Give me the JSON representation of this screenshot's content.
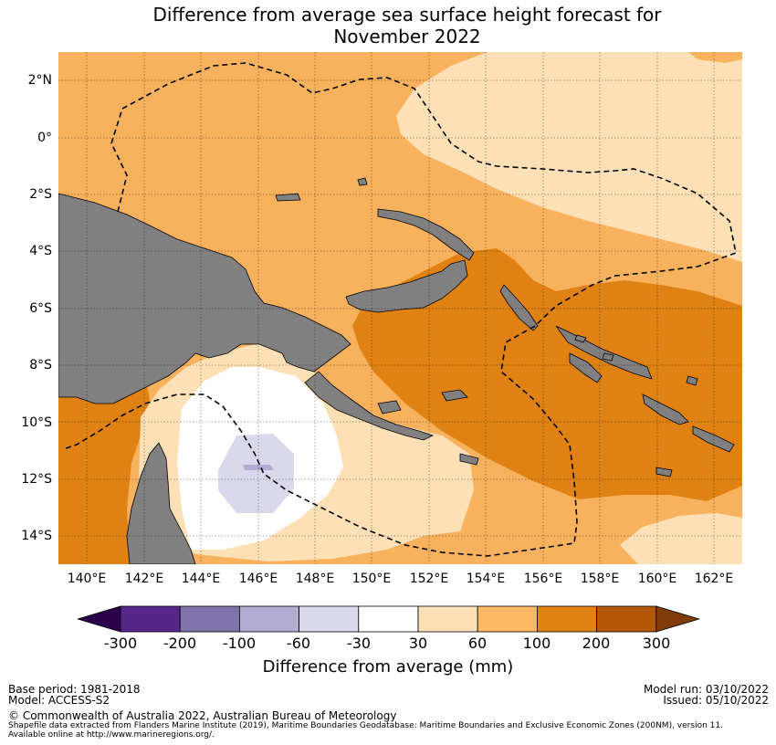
{
  "title": {
    "line1": "Difference from average sea surface height forecast for",
    "line2": "November 2022"
  },
  "map": {
    "lat_labels": [
      "2°N",
      "0°",
      "2°S",
      "4°S",
      "6°S",
      "8°S",
      "10°S",
      "12°S",
      "14°S"
    ],
    "lon_labels": [
      "140°E",
      "142°E",
      "144°E",
      "146°E",
      "148°E",
      "150°E",
      "152°E",
      "154°E",
      "156°E",
      "158°E",
      "160°E",
      "162°E"
    ],
    "lon_range": [
      139,
      163
    ],
    "lat_range": [
      -15,
      3
    ],
    "colors": {
      "land": "#808080",
      "band_30_60": "#fde0b6",
      "band_60_100": "#f8b25e",
      "band_100_200": "#e08213",
      "band_0_30": "#ffffff",
      "band_m30_0": "#d9d9eb",
      "eez_line": "#000000"
    }
  },
  "colorbar": {
    "labels": [
      "-300",
      "-200",
      "-100",
      "-60",
      "-30",
      "30",
      "60",
      "100",
      "200",
      "300"
    ],
    "colors": [
      "#2d004b",
      "#542788",
      "#8073ac",
      "#b2abd2",
      "#d8daeb",
      "#ffffff",
      "#fee0b6",
      "#fdb863",
      "#e08214",
      "#b35806",
      "#7f3b08"
    ],
    "title": "Difference from average (mm)"
  },
  "footer": {
    "base_period": "Base period: 1981-2018",
    "model": "Model: ACCESS-S2",
    "model_run": "Model run: 03/10/2022",
    "issued": "Issued: 05/10/2022",
    "copyright": "© Commonwealth of Australia 2022, Australian Bureau of Meteorology",
    "shapefile_line1": "Shapefile data extracted from Flanders Marine Institute (2019), Maritime Boundaries Geodatabase: Maritime Boundaries and Exclusive Economic Zones (200NM), version 11.",
    "shapefile_line2": "Available online at http://www.marineregions.org/."
  }
}
